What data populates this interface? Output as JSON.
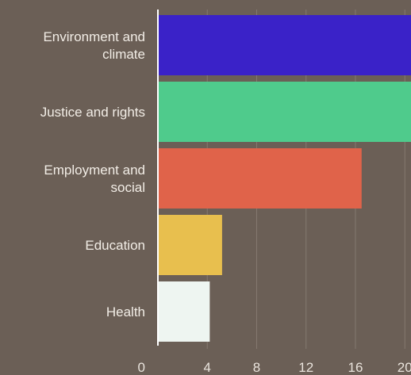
{
  "chart_data": {
    "type": "bar",
    "orientation": "horizontal",
    "categories": [
      [
        "Environment and",
        "climate"
      ],
      [
        "Justice and rights"
      ],
      [
        "Employment and",
        "social"
      ],
      [
        "Education"
      ],
      [
        "Health"
      ]
    ],
    "values": [
      20.5,
      20.5,
      16.5,
      5.2,
      4.2
    ],
    "colors": [
      "#3a22c8",
      "#4fcb8c",
      "#e0634a",
      "#e8bf4e",
      "#eef5f1"
    ],
    "xticks": [
      0,
      4,
      8,
      12,
      16,
      20
    ],
    "xlim": [
      0,
      20.5
    ],
    "grid": true,
    "title": "",
    "xlabel": "",
    "ylabel": ""
  }
}
